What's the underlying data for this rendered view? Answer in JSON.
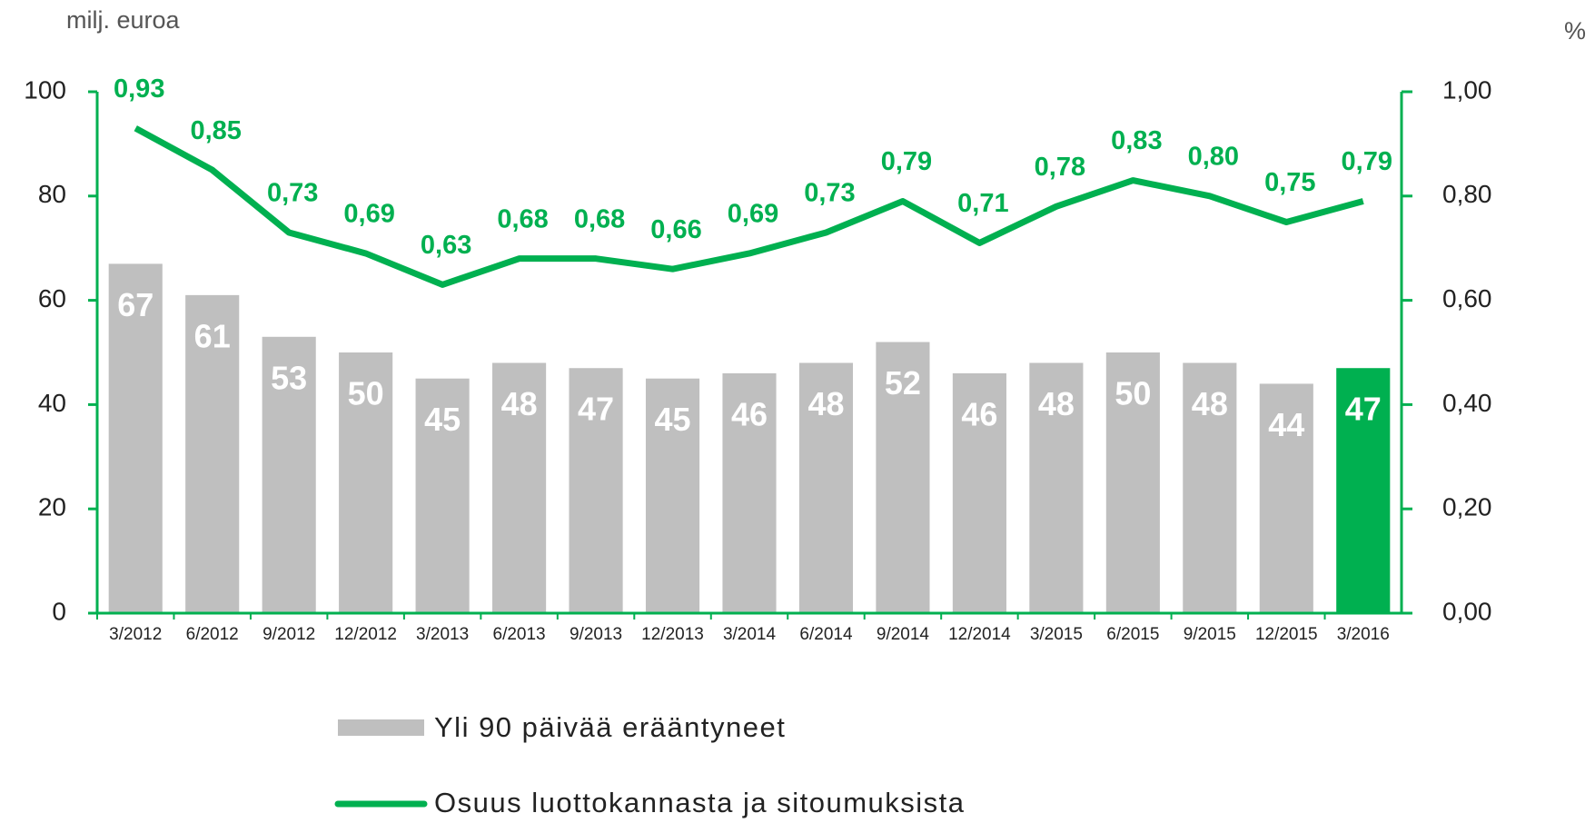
{
  "chart_data": {
    "type": "bar_line",
    "ylabel": "milj. euroa",
    "y2label": "%",
    "categories": [
      "3/2012",
      "6/2012",
      "9/2012",
      "12/2012",
      "3/2013",
      "6/2013",
      "9/2013",
      "12/2013",
      "3/2014",
      "6/2014",
      "9/2014",
      "12/2014",
      "3/2015",
      "6/2015",
      "9/2015",
      "12/2015",
      "3/2016"
    ],
    "series": [
      {
        "name": "Yli 90 päivää erääntyneet",
        "type": "bar",
        "color": "#bfbfbf",
        "colors": [
          "#bfbfbf",
          "#bfbfbf",
          "#bfbfbf",
          "#bfbfbf",
          "#bfbfbf",
          "#bfbfbf",
          "#bfbfbf",
          "#bfbfbf",
          "#bfbfbf",
          "#bfbfbf",
          "#bfbfbf",
          "#bfbfbf",
          "#bfbfbf",
          "#bfbfbf",
          "#bfbfbf",
          "#bfbfbf",
          "#00b050"
        ],
        "values": [
          67,
          61,
          53,
          50,
          45,
          48,
          47,
          45,
          46,
          48,
          52,
          46,
          48,
          50,
          48,
          44,
          47
        ]
      },
      {
        "name": "Osuus luottokannasta ja sitoumuksista",
        "type": "line",
        "axis": "y2",
        "color": "#00b050",
        "values": [
          0.93,
          0.85,
          0.73,
          0.69,
          0.63,
          0.68,
          0.68,
          0.66,
          0.69,
          0.73,
          0.79,
          0.71,
          0.78,
          0.83,
          0.8,
          0.75,
          0.79
        ],
        "value_labels": [
          "0,93",
          "0,85",
          "0,73",
          "0,69",
          "0,63",
          "0,68",
          "0,68",
          "0,66",
          "0,69",
          "0,73",
          "0,79",
          "0,71",
          "0,78",
          "0,83",
          "0,80",
          "0,75",
          "0,79"
        ]
      }
    ],
    "ylim": [
      0,
      100
    ],
    "yticks": [
      0,
      20,
      40,
      60,
      80,
      100
    ],
    "y2lim": [
      0,
      1
    ],
    "y2ticks": [
      {
        "value": 0,
        "label": "0,00"
      },
      {
        "value": 0.2,
        "label": "0,20"
      },
      {
        "value": 0.4,
        "label": "0,40"
      },
      {
        "value": 0.6,
        "label": "0,60"
      },
      {
        "value": 0.8,
        "label": "0,80"
      },
      {
        "value": 1,
        "label": "1,00"
      }
    ],
    "axis_color": "#00b050"
  }
}
